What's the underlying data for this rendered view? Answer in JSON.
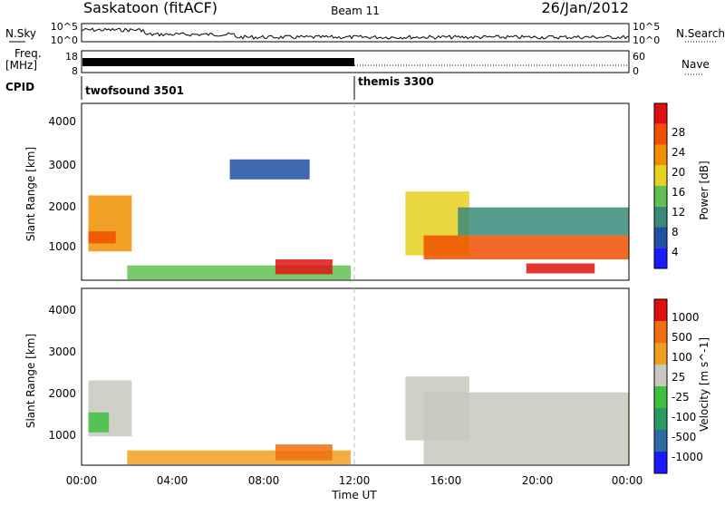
{
  "header": {
    "station": "Saskatoon (fitACF)",
    "beam": "Beam 11",
    "date": "26/Jan/2012"
  },
  "chart_data": [
    {
      "type": "line",
      "panel": "noise",
      "left_label": "N.Sky",
      "left_ticks": [
        "10^5",
        "10^0"
      ],
      "right_label": "N.Search",
      "right_ticks": [
        "10^5",
        "10^0"
      ]
    },
    {
      "type": "line",
      "panel": "frequency",
      "left_label_lines": [
        "Freq.",
        "[MHz]"
      ],
      "left_ticks": [
        "18",
        "8"
      ],
      "right_label": "Nave",
      "right_ticks": [
        "60",
        "0"
      ]
    },
    {
      "type": "table",
      "panel": "cpid",
      "label": "CPID",
      "programs": [
        {
          "name": "twofsound 3501",
          "start_hour": 0
        },
        {
          "name": "themis 3300",
          "start_hour": 12
        }
      ]
    },
    {
      "type": "heatmap",
      "panel": "power",
      "ylabel": "Slant Range [km]",
      "ylim": [
        180,
        4600
      ],
      "yticks": [
        "4000",
        "3000",
        "2000",
        "1000"
      ],
      "colorbar_label": "Power [dB]",
      "colorbar_ticks": [
        "28",
        "24",
        "20",
        "16",
        "12",
        "8",
        "4"
      ],
      "colors": [
        "#1a1aff",
        "#2050a0",
        "#3a8a78",
        "#60c050",
        "#e8d020",
        "#f09000",
        "#f05000",
        "#e01010"
      ],
      "regions": [
        {
          "t0": 0.3,
          "t1": 2.2,
          "r0": 900,
          "r1": 2300,
          "level": 5
        },
        {
          "t0": 0.3,
          "t1": 1.5,
          "r0": 1100,
          "r1": 1400,
          "level": 6
        },
        {
          "t0": 2.0,
          "t1": 11.8,
          "r0": 200,
          "r1": 550,
          "level": 3
        },
        {
          "t0": 8.5,
          "t1": 11.0,
          "r0": 330,
          "r1": 700,
          "level": 7
        },
        {
          "t0": 14.2,
          "t1": 17.0,
          "r0": 800,
          "r1": 2400,
          "level": 4
        },
        {
          "t0": 15.0,
          "t1": 24.0,
          "r0": 700,
          "r1": 1300,
          "level": 6
        },
        {
          "t0": 19.5,
          "t1": 22.5,
          "r0": 350,
          "r1": 600,
          "level": 7
        },
        {
          "t0": 16.5,
          "t1": 24.0,
          "r0": 1300,
          "r1": 2000,
          "level": 2
        },
        {
          "t0": 6.5,
          "t1": 10.0,
          "r0": 2700,
          "r1": 3200,
          "level": 1
        }
      ]
    },
    {
      "type": "heatmap",
      "panel": "velocity",
      "ylabel": "Slant Range [km]",
      "ylim": [
        180,
        4600
      ],
      "yticks": [
        "4000",
        "3000",
        "2000",
        "1000"
      ],
      "colorbar_label": "Velocity [m s^-1]",
      "colorbar_ticks": [
        "1000",
        "500",
        "100",
        "25",
        "-25",
        "-100",
        "-500",
        "-1000"
      ],
      "colors": [
        "#1a1aff",
        "#2a6aa0",
        "#2a9a60",
        "#40c040",
        "#c8c8c0",
        "#f0a020",
        "#f07010",
        "#e01010"
      ],
      "regions": [
        {
          "t0": 0.3,
          "t1": 2.2,
          "r0": 900,
          "r1": 2300,
          "level": 4
        },
        {
          "t0": 0.3,
          "t1": 1.2,
          "r0": 1000,
          "r1": 1500,
          "level": 3
        },
        {
          "t0": 2.0,
          "t1": 11.8,
          "r0": 200,
          "r1": 550,
          "level": 5
        },
        {
          "t0": 8.5,
          "t1": 11.0,
          "r0": 300,
          "r1": 700,
          "level": 6
        },
        {
          "t0": 14.2,
          "t1": 17.0,
          "r0": 800,
          "r1": 2400,
          "level": 4
        },
        {
          "t0": 15.0,
          "t1": 24.0,
          "r0": 200,
          "r1": 2000,
          "level": 4
        }
      ]
    }
  ],
  "xaxis": {
    "label": "Time UT",
    "ticks": [
      "00:00",
      "04:00",
      "08:00",
      "12:00",
      "16:00",
      "20:00",
      "00:00"
    ],
    "xlim_hours": [
      0,
      24
    ]
  }
}
